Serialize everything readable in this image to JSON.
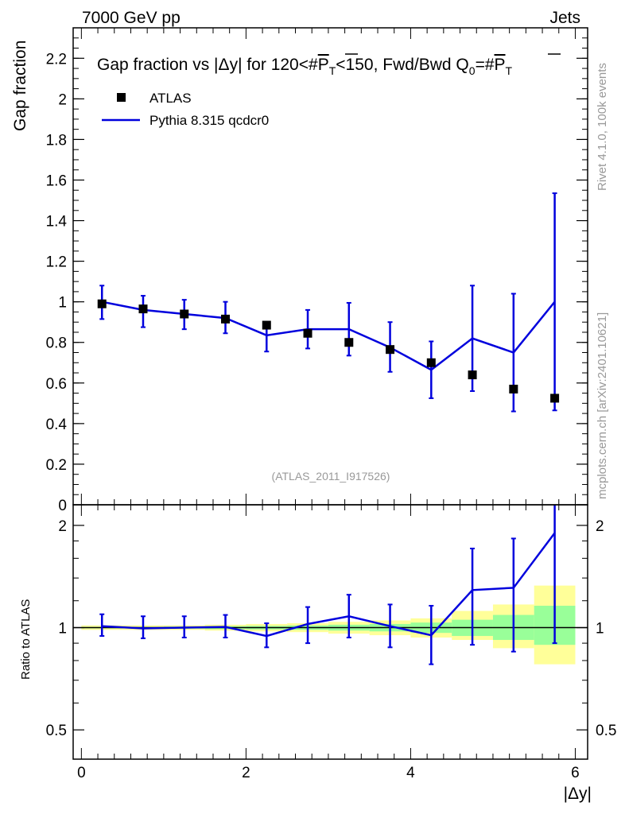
{
  "header": {
    "left": "7000 GeV pp",
    "right": "Jets"
  },
  "side_labels": {
    "rivet": "Rivet 4.1.0,  100k events",
    "mcplots": "mcplots.cern.ch [arXiv:2401.10621]"
  },
  "chart_data": [
    {
      "type": "scatter",
      "title": "Gap fraction vs |Δy| for 120<#P̅T<150, Fwd/Bwd Q0=#P̅T",
      "title_parts": {
        "pre": "Gap fraction vs |",
        "delta": "Δ",
        "mid": "y| for 120<#",
        "pt_p": "P",
        "pt_sub": "T",
        "mid2": "<150, Fwd/Bwd Q",
        "q_sub": "0",
        "eq": "=#",
        "pt2_p": "P",
        "pt2_sub": "T"
      },
      "ylabel": "Gap fraction",
      "watermark": "(ATLAS_2011_I917526)",
      "xlim": [
        -0.1,
        6.15
      ],
      "ylim": [
        0,
        2.35
      ],
      "y_ticks": [
        {
          "v": 0,
          "label": "0"
        },
        {
          "v": 0.2,
          "label": "0.2"
        },
        {
          "v": 0.4,
          "label": "0.4"
        },
        {
          "v": 0.6,
          "label": "0.6"
        },
        {
          "v": 0.8,
          "label": "0.8"
        },
        {
          "v": 1.0,
          "label": "1"
        },
        {
          "v": 1.2,
          "label": "1.2"
        },
        {
          "v": 1.4,
          "label": "1.4"
        },
        {
          "v": 1.6,
          "label": "1.6"
        },
        {
          "v": 1.8,
          "label": "1.8"
        },
        {
          "v": 2.0,
          "label": "2"
        },
        {
          "v": 2.2,
          "label": "2.2"
        }
      ],
      "legend": [
        {
          "name": "ATLAS",
          "marker": "square",
          "color": "#000000"
        },
        {
          "name": "Pythia 8.315 qcdcr0",
          "marker": "line",
          "color": "#0000dd"
        }
      ],
      "x": [
        0.25,
        0.75,
        1.25,
        1.75,
        2.25,
        2.75,
        3.25,
        3.75,
        4.25,
        4.75,
        5.25,
        5.75
      ],
      "series": [
        {
          "name": "ATLAS",
          "values": [
            0.99,
            0.965,
            0.94,
            0.915,
            0.885,
            0.845,
            0.8,
            0.765,
            0.7,
            0.64,
            0.57,
            0.525
          ]
        },
        {
          "name": "Pythia 8.315 qcdcr0",
          "values": [
            1.0,
            0.96,
            0.94,
            0.92,
            0.835,
            0.865,
            0.865,
            0.775,
            0.665,
            0.82,
            0.75,
            1.0
          ],
          "err_lo": [
            0.085,
            0.085,
            0.075,
            0.075,
            0.08,
            0.095,
            0.13,
            0.12,
            0.14,
            0.26,
            0.29,
            0.535
          ],
          "err_hi": [
            0.08,
            0.07,
            0.07,
            0.08,
            0.055,
            0.095,
            0.13,
            0.125,
            0.14,
            0.26,
            0.29,
            0.535
          ]
        }
      ]
    },
    {
      "type": "line",
      "ylabel": "Ratio to ATLAS",
      "xlabel": "|Δy|",
      "scale": "log",
      "ylim": [
        0.41,
        2.3
      ],
      "y_ticks": [
        {
          "v": 0.5,
          "label": "0.5"
        },
        {
          "v": 1,
          "label": "1"
        },
        {
          "v": 2,
          "label": "2"
        }
      ],
      "x_ticks": [
        {
          "v": 0,
          "label": "0"
        },
        {
          "v": 2,
          "label": "2"
        },
        {
          "v": 4,
          "label": "4"
        },
        {
          "v": 6,
          "label": "6"
        }
      ],
      "x_bins": [
        0,
        0.5,
        1,
        1.5,
        2,
        2.5,
        3,
        3.5,
        4,
        4.5,
        5,
        5.5,
        6
      ],
      "band_yellow": {
        "lo": [
          0.985,
          0.985,
          0.985,
          0.98,
          0.975,
          0.97,
          0.96,
          0.95,
          0.935,
          0.92,
          0.87,
          0.78
        ],
        "hi": [
          1.015,
          1.015,
          1.015,
          1.02,
          1.025,
          1.03,
          1.04,
          1.05,
          1.065,
          1.12,
          1.17,
          1.33
        ]
      },
      "band_green": {
        "lo": [
          0.995,
          0.995,
          0.993,
          0.99,
          0.988,
          0.985,
          0.98,
          0.975,
          0.965,
          0.945,
          0.92,
          0.89
        ],
        "hi": [
          1.005,
          1.005,
          1.007,
          1.01,
          1.012,
          1.015,
          1.02,
          1.025,
          1.035,
          1.055,
          1.09,
          1.16
        ]
      },
      "series": [
        {
          "name": "Pythia 8.315 qcdcr0 / ATLAS",
          "values": [
            1.01,
            0.995,
            1.0,
            1.005,
            0.945,
            1.025,
            1.08,
            1.01,
            0.95,
            1.29,
            1.31,
            1.9
          ],
          "err_lo": [
            0.945,
            0.93,
            0.935,
            0.935,
            0.875,
            0.9,
            0.935,
            0.875,
            0.78,
            0.89,
            0.85,
            0.9
          ],
          "err_hi": [
            1.095,
            1.08,
            1.08,
            1.09,
            1.03,
            1.15,
            1.25,
            1.17,
            1.16,
            1.71,
            1.83,
            2.3
          ]
        }
      ]
    }
  ]
}
